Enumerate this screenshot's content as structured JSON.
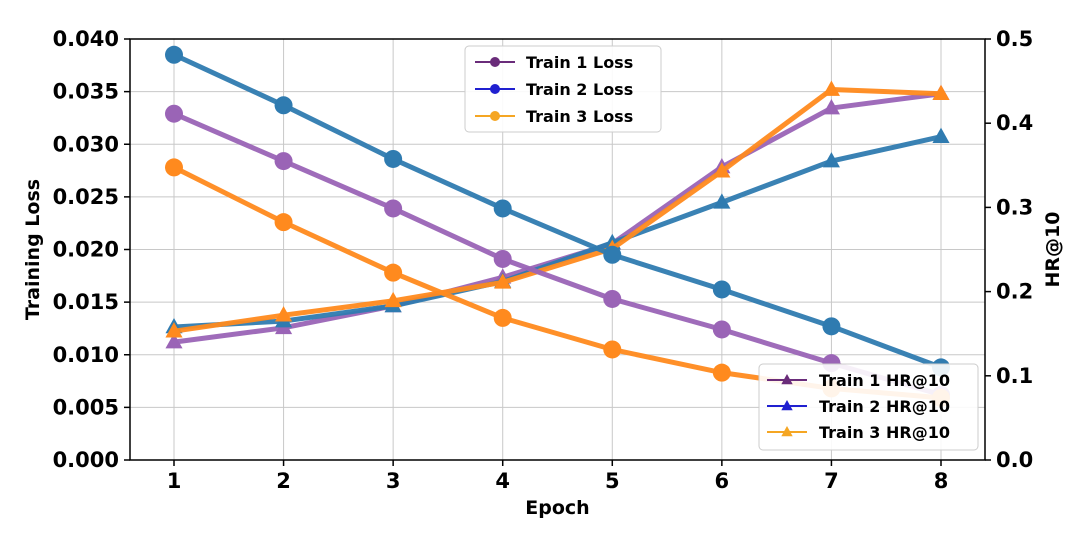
{
  "chart_data": {
    "type": "line",
    "title": "",
    "xlabel": "Epoch",
    "ylabel": "Training Loss",
    "y2label": "HR@10",
    "x": [
      1,
      2,
      3,
      4,
      5,
      6,
      7,
      8
    ],
    "xticks": [
      "1",
      "2",
      "3",
      "4",
      "5",
      "6",
      "7",
      "8"
    ],
    "ylim": [
      0,
      0.04
    ],
    "yticks": [
      "0.000",
      "0.005",
      "0.010",
      "0.015",
      "0.020",
      "0.025",
      "0.030",
      "0.035",
      "0.040"
    ],
    "y2lim": [
      0,
      0.5
    ],
    "y2ticks": [
      "0.0",
      "0.1",
      "0.2",
      "0.3",
      "0.4",
      "0.5"
    ],
    "grid": true,
    "loss_series": [
      {
        "name": "Train 1 Loss",
        "color": "#9a64b6",
        "legend_color": "#6a2c7a",
        "marker": "circle",
        "values": [
          0.0329,
          0.0284,
          0.0239,
          0.0191,
          0.0153,
          0.0124,
          0.0092,
          0.0062
        ]
      },
      {
        "name": "Train 2 Loss",
        "color": "#2f7bb0",
        "legend_color": "#2020d0",
        "marker": "circle",
        "values": [
          0.0385,
          0.0337,
          0.0286,
          0.0239,
          0.0195,
          0.0162,
          0.0127,
          0.0088
        ]
      },
      {
        "name": "Train 3 Loss",
        "color": "#ff8a1e",
        "legend_color": "#f5a623",
        "marker": "circle",
        "values": [
          0.0278,
          0.0226,
          0.0178,
          0.0135,
          0.0105,
          0.0083,
          0.0068,
          0.0059
        ]
      }
    ],
    "hr_series": [
      {
        "name": "Train 1 HR@10",
        "color": "#9a64b6",
        "legend_color": "#6a2c7a",
        "marker": "triangle",
        "values": [
          0.14,
          0.157,
          0.183,
          0.217,
          0.257,
          0.348,
          0.418,
          0.435
        ]
      },
      {
        "name": "Train 2 HR@10",
        "color": "#2f7bb0",
        "legend_color": "#2020d0",
        "marker": "triangle",
        "values": [
          0.158,
          0.165,
          0.183,
          0.212,
          0.258,
          0.306,
          0.355,
          0.384
        ]
      },
      {
        "name": "Train 3 HR@10",
        "color": "#ff8a1e",
        "legend_color": "#f5a623",
        "marker": "triangle",
        "values": [
          0.153,
          0.172,
          0.189,
          0.211,
          0.251,
          0.343,
          0.44,
          0.435
        ]
      }
    ],
    "loss_legend_position": "top-center",
    "hr_legend_position": "bottom-right"
  }
}
